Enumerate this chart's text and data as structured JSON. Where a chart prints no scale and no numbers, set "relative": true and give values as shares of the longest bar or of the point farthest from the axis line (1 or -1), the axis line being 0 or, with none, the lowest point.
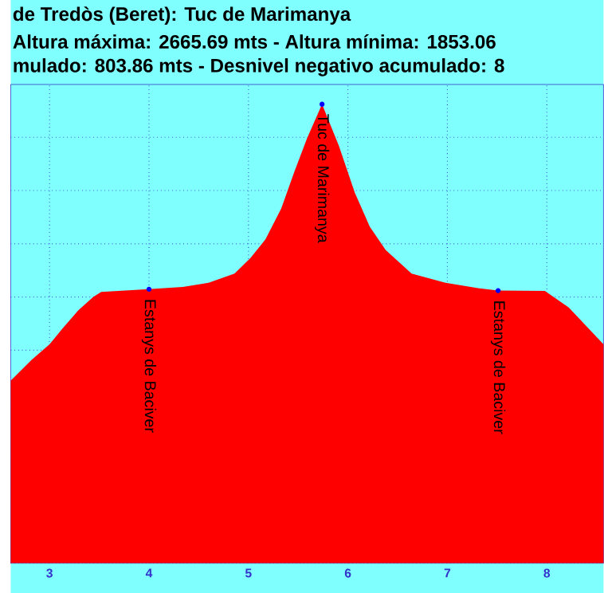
{
  "chart_data": {
    "type": "area",
    "title": "de Tredòs (Beret): Tuc de Marimanya",
    "subtitle": "Altura máxima: 2665.69 mts - Altura mínima: 1853.06",
    "relative": true,
    "color": "#ff0000",
    "x": [
      2.61,
      2.82,
      3.0,
      3.13,
      3.29,
      3.44,
      3.52,
      4.0,
      4.34,
      4.6,
      4.86,
      5.02,
      5.17,
      5.33,
      5.46,
      5.59,
      5.74,
      5.91,
      6.07,
      6.22,
      6.38,
      6.64,
      6.98,
      7.32,
      7.51,
      7.98,
      8.22,
      8.57
    ],
    "values": [
      0.398,
      0.443,
      0.477,
      0.511,
      0.551,
      0.58,
      0.591,
      0.597,
      0.602,
      0.611,
      0.631,
      0.665,
      0.705,
      0.773,
      0.852,
      0.926,
      1.0,
      0.909,
      0.807,
      0.733,
      0.682,
      0.631,
      0.611,
      0.599,
      0.594,
      0.593,
      0.557,
      0.477
    ],
    "xlim": [
      2.61,
      8.57
    ],
    "xticks": [
      3,
      4,
      5,
      6,
      7,
      8
    ],
    "grid": true,
    "annotations": [
      "mulado: 803.86 mts - Desnivel negativo acumulado: 8",
      {
        "text": "Estanys de Baciver",
        "x": 4.0,
        "y": 0.597
      },
      {
        "text": "Tuc de Marimanya",
        "x": 5.74,
        "y": 1.0
      },
      {
        "text": "Estanys de Baciver",
        "x": 7.51,
        "y": 0.594
      }
    ]
  }
}
